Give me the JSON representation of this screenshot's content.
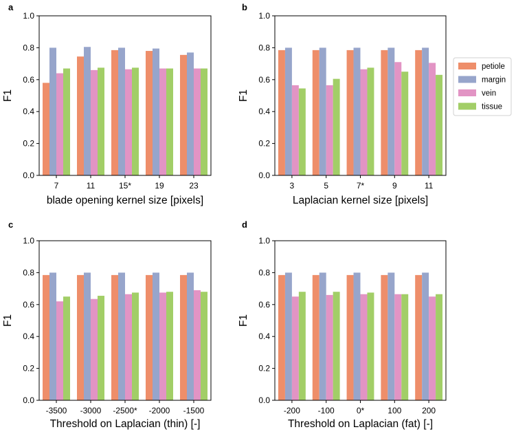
{
  "colors": {
    "petiole": "#EE8E6A",
    "margin": "#97A5CB",
    "vein": "#E294C4",
    "tissue": "#A2CE67"
  },
  "legend": {
    "items": [
      {
        "key": "petiole",
        "label": "petiole"
      },
      {
        "key": "margin",
        "label": "margin"
      },
      {
        "key": "vein",
        "label": "vein"
      },
      {
        "key": "tissue",
        "label": "tissue"
      }
    ]
  },
  "chart_data": [
    {
      "panel": "a",
      "type": "bar",
      "title": "",
      "xlabel": "blade opening kernel size [pixels]",
      "ylabel": "F1",
      "ylim": [
        0,
        1.0
      ],
      "yticks": [
        "0.0",
        "0.2",
        "0.4",
        "0.6",
        "0.8",
        "1.0"
      ],
      "categories": [
        "7",
        "11",
        "15*",
        "19",
        "23"
      ],
      "series": [
        {
          "name": "petiole",
          "values": [
            0.58,
            0.745,
            0.785,
            0.78,
            0.755
          ]
        },
        {
          "name": "margin",
          "values": [
            0.8,
            0.805,
            0.8,
            0.795,
            0.77
          ]
        },
        {
          "name": "vein",
          "values": [
            0.64,
            0.66,
            0.665,
            0.67,
            0.67
          ]
        },
        {
          "name": "tissue",
          "values": [
            0.67,
            0.675,
            0.675,
            0.67,
            0.67
          ]
        }
      ]
    },
    {
      "panel": "b",
      "type": "bar",
      "title": "",
      "xlabel": "Laplacian kernel size [pixels]",
      "ylabel": "F1",
      "ylim": [
        0,
        1.0
      ],
      "yticks": [
        "0.0",
        "0.2",
        "0.4",
        "0.6",
        "0.8",
        "1.0"
      ],
      "categories": [
        "3",
        "5",
        "7*",
        "9",
        "11"
      ],
      "series": [
        {
          "name": "petiole",
          "values": [
            0.785,
            0.785,
            0.785,
            0.785,
            0.785
          ]
        },
        {
          "name": "margin",
          "values": [
            0.8,
            0.8,
            0.8,
            0.8,
            0.8
          ]
        },
        {
          "name": "vein",
          "values": [
            0.565,
            0.565,
            0.665,
            0.71,
            0.705
          ]
        },
        {
          "name": "tissue",
          "values": [
            0.545,
            0.605,
            0.675,
            0.65,
            0.63
          ]
        }
      ]
    },
    {
      "panel": "c",
      "type": "bar",
      "title": "",
      "xlabel": "Threshold on Laplacian (thin) [-]",
      "ylabel": "F1",
      "ylim": [
        0,
        1.0
      ],
      "yticks": [
        "0.0",
        "0.2",
        "0.4",
        "0.6",
        "0.8",
        "1.0"
      ],
      "categories": [
        "-3500",
        "-3000",
        "-2500*",
        "-2000",
        "-1500"
      ],
      "series": [
        {
          "name": "petiole",
          "values": [
            0.785,
            0.785,
            0.785,
            0.785,
            0.785
          ]
        },
        {
          "name": "margin",
          "values": [
            0.8,
            0.8,
            0.8,
            0.8,
            0.8
          ]
        },
        {
          "name": "vein",
          "values": [
            0.62,
            0.635,
            0.665,
            0.675,
            0.69
          ]
        },
        {
          "name": "tissue",
          "values": [
            0.65,
            0.655,
            0.675,
            0.68,
            0.68
          ]
        }
      ]
    },
    {
      "panel": "d",
      "type": "bar",
      "title": "",
      "xlabel": "Threshold on Laplacian (fat) [-]",
      "ylabel": "F1",
      "ylim": [
        0,
        1.0
      ],
      "yticks": [
        "0.0",
        "0.2",
        "0.4",
        "0.6",
        "0.8",
        "1.0"
      ],
      "categories": [
        "-200",
        "-100",
        "0*",
        "100",
        "200"
      ],
      "series": [
        {
          "name": "petiole",
          "values": [
            0.785,
            0.785,
            0.785,
            0.785,
            0.785
          ]
        },
        {
          "name": "margin",
          "values": [
            0.8,
            0.8,
            0.8,
            0.8,
            0.8
          ]
        },
        {
          "name": "vein",
          "values": [
            0.65,
            0.66,
            0.665,
            0.665,
            0.65
          ]
        },
        {
          "name": "tissue",
          "values": [
            0.68,
            0.68,
            0.675,
            0.665,
            0.665
          ]
        }
      ]
    }
  ]
}
